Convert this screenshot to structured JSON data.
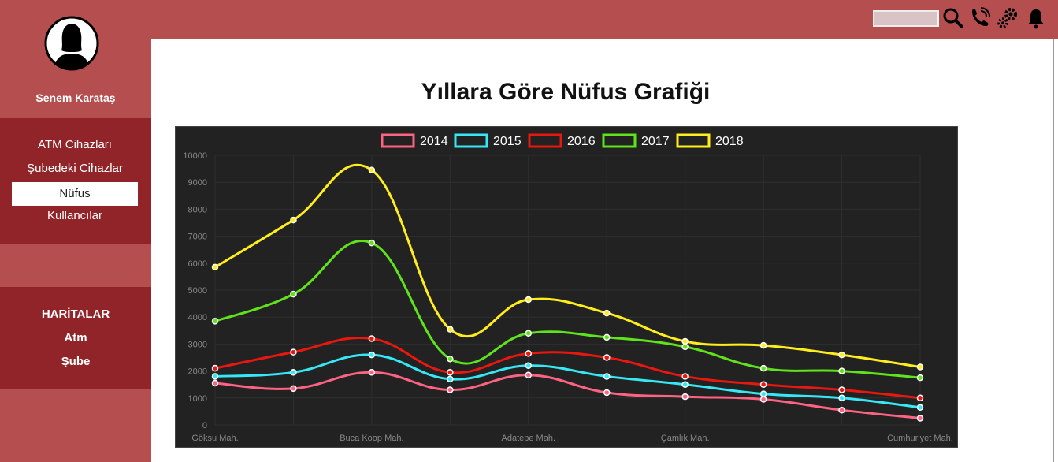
{
  "user": {
    "name": "Senem Karataş"
  },
  "sidebar": {
    "items": [
      {
        "label": "ATM Cihazları"
      },
      {
        "label": "Şubedeki Cihazlar"
      },
      {
        "label": "Nüfus",
        "active": true
      },
      {
        "label": "Kullancılar"
      }
    ],
    "maps": {
      "heading": "HARİTALAR",
      "items": [
        {
          "label": "Atm"
        },
        {
          "label": "Şube"
        }
      ]
    }
  },
  "topbar": {
    "search": {
      "value": "",
      "placeholder": ""
    },
    "icons": [
      "search-icon",
      "phone-icon",
      "settings-icon",
      "bell-icon"
    ]
  },
  "page": {
    "title": "Yıllara Göre Nüfus Grafiği"
  },
  "colors": {
    "topbar": "#b44e4f",
    "sidebar_block": "#902428",
    "chart_background": "#222222"
  },
  "chart_data": {
    "type": "line",
    "title": "",
    "xlabel": "",
    "ylabel": "",
    "ylim": [
      0,
      10000
    ],
    "yticks": [
      0,
      1000,
      2000,
      3000,
      4000,
      5000,
      6000,
      7000,
      8000,
      9000,
      10000
    ],
    "categories": [
      "Göksu Mah.",
      "",
      "Buca Koop Mah.",
      "",
      "Adatepe Mah.",
      "",
      "Çamlık Mah.",
      "",
      "",
      "Cumhuriyet Mah."
    ],
    "legend_position": "top",
    "grid": true,
    "series": [
      {
        "name": "2014",
        "color": "#ff6384",
        "values": [
          1550,
          1350,
          1950,
          1300,
          1850,
          1200,
          1050,
          950,
          550,
          250
        ]
      },
      {
        "name": "2015",
        "color": "#36e8f5",
        "values": [
          1800,
          1950,
          2600,
          1700,
          2200,
          1800,
          1500,
          1150,
          1000,
          650
        ]
      },
      {
        "name": "2016",
        "color": "#e8170f",
        "values": [
          2100,
          2700,
          3200,
          1950,
          2650,
          2500,
          1800,
          1500,
          1300,
          1000
        ]
      },
      {
        "name": "2017",
        "color": "#5fe31a",
        "values": [
          3850,
          4850,
          6750,
          2450,
          3400,
          3250,
          2900,
          2100,
          2000,
          1750
        ]
      },
      {
        "name": "2018",
        "color": "#ffed1d",
        "values": [
          5850,
          7600,
          9450,
          3550,
          4650,
          4150,
          3100,
          2950,
          2600,
          2150
        ]
      }
    ]
  }
}
